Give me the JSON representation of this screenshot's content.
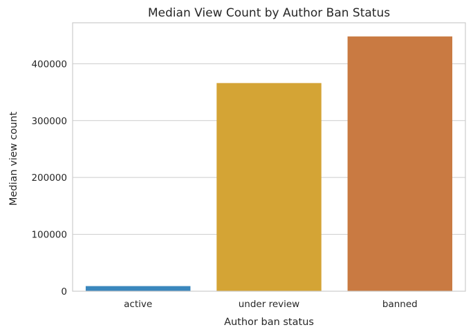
{
  "chart_data": {
    "type": "bar",
    "title": "Median View Count by Author Ban Status",
    "xlabel": "Author ban status",
    "ylabel": "Median view count",
    "categories": [
      "active",
      "under review",
      "banned"
    ],
    "values": [
      9000,
      366000,
      448000
    ],
    "ylim": [
      0,
      472000
    ],
    "yticks": [
      0,
      100000,
      200000,
      300000,
      400000
    ],
    "ytick_labels": [
      "0",
      "100000",
      "200000",
      "300000",
      "400000"
    ],
    "colors": [
      "#3a87bd",
      "#d4a435",
      "#c97a42"
    ],
    "grid": true,
    "grid_axis": "y"
  }
}
